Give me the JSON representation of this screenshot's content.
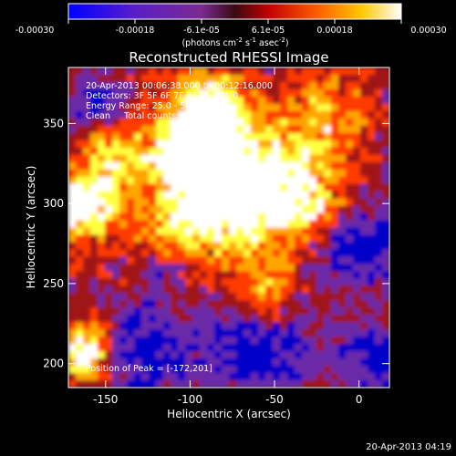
{
  "colorbar": {
    "min": -0.0003,
    "max": 0.0003,
    "tick_labels": [
      "-0.00030",
      "-0.00018",
      "-6.1e-05",
      "6.1e-05",
      "0.00018",
      "0.00030"
    ],
    "unit_text": "(photons cm",
    "unit_exp1": "-2",
    "unit_mid": " s",
    "unit_exp2": "-1",
    "unit_mid2": " asec",
    "unit_exp3": "-2",
    "unit_close": ")"
  },
  "title": "Reconstructed RHESSI Image",
  "annotations": [
    "20-Apr-2013 00:06:38.000 to 00:12:16.000",
    "Detectors: 3F 5F 6F 7F 8F 9F, Att_0",
    "Energy Range: 25.0 - 50.0 keV",
    "Clean     Total counts: 1.16E+04"
  ],
  "peak_label": "Position of Peak = [-172,201]",
  "axes": {
    "xlabel": "Heliocentric X (arcsec)",
    "ylabel": "Heliocentric Y (arcsec)",
    "xlim": [
      -172,
      18
    ],
    "ylim": [
      185,
      385
    ],
    "xticks": [
      -150,
      -100,
      -50,
      0
    ],
    "yticks": [
      200,
      250,
      300,
      350
    ]
  },
  "footer_timestamp": "20-Apr-2013 04:19",
  "palette": [
    "#0000c8",
    "#6a2aa8",
    "#a01818",
    "#ff3a00",
    "#ffa600",
    "#ffff40",
    "#ffffff"
  ]
}
